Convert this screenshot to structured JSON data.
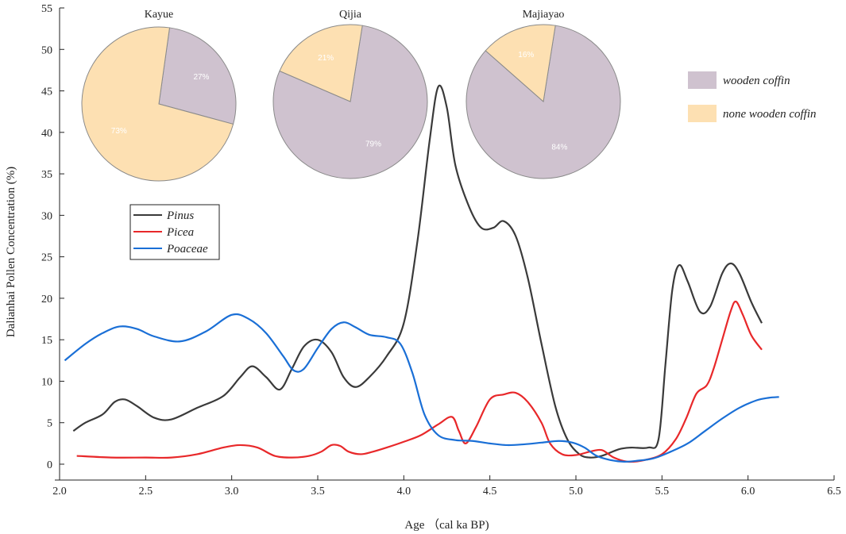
{
  "colors": {
    "pinus": "#3a3a3a",
    "picea": "#e8282a",
    "poaceae": "#1a6fd6",
    "wooden": "#cfc2cf",
    "none_wooden": "#fde0b2",
    "axis": "#222222"
  },
  "chart_data": {
    "type": "line",
    "title": "",
    "xlabel": "Age （cal ka BP)",
    "ylabel": "Dalianhai Pollen Concentration (%)",
    "xlim": [
      2.0,
      6.5
    ],
    "ylim": [
      0,
      55
    ],
    "xticks": [
      2.0,
      2.5,
      3.0,
      3.5,
      4.0,
      4.5,
      5.0,
      5.5,
      6.0,
      6.5
    ],
    "xtick_labels": [
      "2.0",
      "2.5",
      "3.0",
      "3.5",
      "4.0",
      "4.5",
      "5.0",
      "5.5",
      "6.0",
      "6.5"
    ],
    "yticks": [
      0,
      5,
      10,
      15,
      20,
      25,
      30,
      35,
      40,
      45,
      50,
      55
    ],
    "ytick_labels": [
      "0",
      "5",
      "10",
      "15",
      "20",
      "25",
      "30",
      "35",
      "40",
      "45",
      "50",
      "55"
    ],
    "series": [
      {
        "name": "Pinus",
        "color_key": "pinus",
        "x": [
          2.08,
          2.15,
          2.25,
          2.32,
          2.38,
          2.45,
          2.55,
          2.65,
          2.8,
          2.95,
          3.05,
          3.12,
          3.2,
          3.28,
          3.35,
          3.42,
          3.5,
          3.58,
          3.65,
          3.72,
          3.8,
          3.9,
          4.0,
          4.08,
          4.15,
          4.2,
          4.25,
          4.3,
          4.38,
          4.45,
          4.52,
          4.58,
          4.65,
          4.72,
          4.8,
          4.88,
          4.95,
          5.02,
          5.08,
          5.15,
          5.25,
          5.32,
          5.42,
          5.48,
          5.52,
          5.56,
          5.6,
          5.65,
          5.72,
          5.78,
          5.85,
          5.9,
          5.95,
          6.02,
          6.08
        ],
        "values": [
          4.0,
          5.0,
          6.0,
          7.5,
          7.8,
          7.0,
          5.6,
          5.4,
          6.8,
          8.2,
          10.5,
          11.8,
          10.5,
          9.0,
          11.5,
          14.2,
          15.0,
          13.5,
          10.5,
          9.3,
          10.5,
          13.0,
          17.0,
          27.0,
          39.0,
          45.5,
          43.0,
          36.0,
          31.0,
          28.5,
          28.5,
          29.3,
          27.5,
          22.5,
          14.5,
          7.0,
          3.0,
          1.2,
          0.8,
          1.0,
          1.8,
          2.0,
          2.0,
          3.0,
          12.0,
          21.0,
          24.0,
          22.0,
          18.4,
          19.0,
          23.0,
          24.2,
          23.0,
          19.5,
          17.0
        ]
      },
      {
        "name": "Picea",
        "color_key": "picea",
        "x": [
          2.1,
          2.3,
          2.5,
          2.65,
          2.8,
          2.95,
          3.05,
          3.15,
          3.25,
          3.35,
          3.45,
          3.52,
          3.58,
          3.63,
          3.68,
          3.75,
          3.82,
          3.9,
          4.0,
          4.1,
          4.2,
          4.28,
          4.32,
          4.36,
          4.42,
          4.5,
          4.58,
          4.65,
          4.72,
          4.8,
          4.85,
          4.92,
          5.0,
          5.08,
          5.15,
          5.22,
          5.3,
          5.4,
          5.5,
          5.58,
          5.64,
          5.7,
          5.76,
          5.8,
          5.85,
          5.9,
          5.93,
          5.97,
          6.02,
          6.08
        ],
        "values": [
          1.0,
          0.8,
          0.8,
          0.8,
          1.2,
          2.0,
          2.3,
          2.0,
          1.0,
          0.8,
          1.0,
          1.5,
          2.3,
          2.2,
          1.5,
          1.2,
          1.5,
          2.0,
          2.7,
          3.5,
          4.8,
          5.7,
          4.0,
          2.5,
          4.5,
          7.8,
          8.4,
          8.6,
          7.5,
          5.0,
          2.5,
          1.2,
          1.1,
          1.5,
          1.7,
          0.8,
          0.3,
          0.5,
          1.2,
          3.0,
          5.5,
          8.5,
          9.5,
          11.5,
          15.0,
          18.5,
          19.6,
          18.0,
          15.5,
          13.8
        ]
      },
      {
        "name": "Poaceae",
        "color_key": "poaceae",
        "x": [
          2.03,
          2.15,
          2.25,
          2.35,
          2.45,
          2.55,
          2.7,
          2.85,
          3.0,
          3.1,
          3.2,
          3.3,
          3.36,
          3.42,
          3.5,
          3.58,
          3.65,
          3.72,
          3.8,
          3.9,
          3.98,
          4.05,
          4.12,
          4.2,
          4.3,
          4.4,
          4.5,
          4.6,
          4.7,
          4.8,
          4.9,
          4.98,
          5.05,
          5.12,
          5.2,
          5.28,
          5.35,
          5.45,
          5.55,
          5.65,
          5.75,
          5.85,
          5.95,
          6.05,
          6.12,
          6.18
        ],
        "values": [
          12.5,
          14.5,
          15.8,
          16.6,
          16.3,
          15.4,
          14.8,
          16.0,
          18.0,
          17.5,
          15.8,
          13.0,
          11.3,
          11.5,
          14.0,
          16.3,
          17.1,
          16.5,
          15.6,
          15.3,
          14.5,
          11.0,
          6.0,
          3.5,
          2.9,
          2.8,
          2.5,
          2.3,
          2.4,
          2.6,
          2.8,
          2.6,
          2.0,
          1.0,
          0.5,
          0.3,
          0.4,
          0.7,
          1.5,
          2.5,
          4.0,
          5.5,
          6.8,
          7.7,
          8.0,
          8.1
        ]
      }
    ],
    "legend": {
      "position": "left-middle",
      "entries": [
        "Pinus",
        "Picea",
        "Poaceae"
      ]
    },
    "pies": [
      {
        "title": "Kayue",
        "slices": [
          {
            "label": "wooden coffin",
            "value": 27,
            "pct_text": "27%",
            "color_key": "wooden"
          },
          {
            "label": "none wooden coffin",
            "value": 73,
            "pct_text": "73%",
            "color_key": "none_wooden"
          }
        ]
      },
      {
        "title": "Qijia",
        "slices": [
          {
            "label": "wooden coffin",
            "value": 79,
            "pct_text": "79%",
            "color_key": "wooden"
          },
          {
            "label": "none wooden coffin",
            "value": 21,
            "pct_text": "21%",
            "color_key": "none_wooden"
          }
        ]
      },
      {
        "title": "Majiayao",
        "slices": [
          {
            "label": "wooden coffin",
            "value": 84,
            "pct_text": "84%",
            "color_key": "wooden"
          },
          {
            "label": "none wooden coffin",
            "value": 16,
            "pct_text": "16%",
            "color_key": "none_wooden"
          }
        ]
      }
    ],
    "pie_legend": {
      "position": "top-right",
      "entries": [
        {
          "label": "wooden coffin",
          "color_key": "wooden"
        },
        {
          "label": "none wooden coffin",
          "color_key": "none_wooden"
        }
      ]
    }
  }
}
